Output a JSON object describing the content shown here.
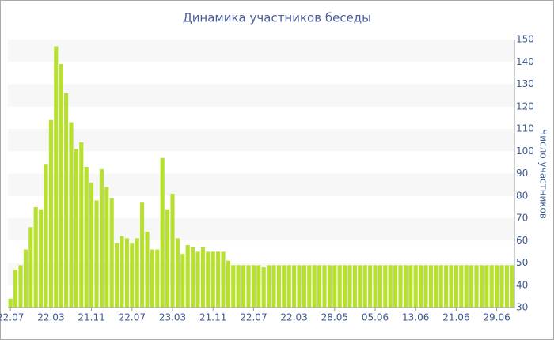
{
  "chart_data": {
    "type": "bar",
    "title": "Динамика участников беседы",
    "y_label": "Число участников",
    "color": "#b8e030",
    "ylim": [
      30,
      150
    ],
    "yticks": [
      30,
      40,
      50,
      60,
      70,
      80,
      90,
      100,
      110,
      120,
      130,
      140,
      150
    ],
    "grid": true,
    "categories": [
      "22.07",
      null,
      null,
      null,
      null,
      null,
      null,
      null,
      "22.03",
      null,
      null,
      null,
      null,
      null,
      null,
      null,
      "21.11",
      null,
      null,
      null,
      null,
      null,
      null,
      null,
      "22.07",
      null,
      null,
      null,
      null,
      null,
      null,
      null,
      "23.03",
      null,
      null,
      null,
      null,
      null,
      null,
      null,
      "21.11",
      null,
      null,
      null,
      null,
      null,
      null,
      null,
      "22.07",
      null,
      null,
      null,
      null,
      null,
      null,
      null,
      "22.03",
      null,
      null,
      null,
      null,
      null,
      null,
      null,
      "28.05",
      null,
      null,
      null,
      null,
      null,
      null,
      null,
      "05.06",
      null,
      null,
      null,
      null,
      null,
      null,
      null,
      "13.06",
      null,
      null,
      null,
      null,
      null,
      null,
      null,
      "21.06",
      null,
      null,
      null,
      null,
      null,
      null,
      null,
      "29.06",
      null,
      null,
      null
    ],
    "values": [
      34,
      47,
      49,
      56,
      66,
      75,
      74,
      94,
      114,
      147,
      139,
      126,
      113,
      101,
      104,
      93,
      86,
      78,
      92,
      84,
      79,
      59,
      62,
      61,
      59,
      61,
      77,
      64,
      56,
      56,
      97,
      74,
      81,
      61,
      54,
      58,
      57,
      55,
      57,
      55,
      55,
      55,
      55,
      51,
      49,
      49,
      49,
      49,
      49,
      49,
      48,
      49,
      49,
      49,
      49,
      49,
      49,
      49,
      49,
      49,
      49,
      49,
      49,
      49,
      49,
      49,
      49,
      49,
      49,
      49,
      49,
      49,
      49,
      49,
      49,
      49,
      49,
      49,
      49,
      49,
      49,
      49,
      49,
      49,
      49,
      49,
      49,
      49,
      49,
      49,
      49,
      49,
      49,
      49,
      49,
      49,
      49,
      49,
      49,
      49
    ]
  }
}
